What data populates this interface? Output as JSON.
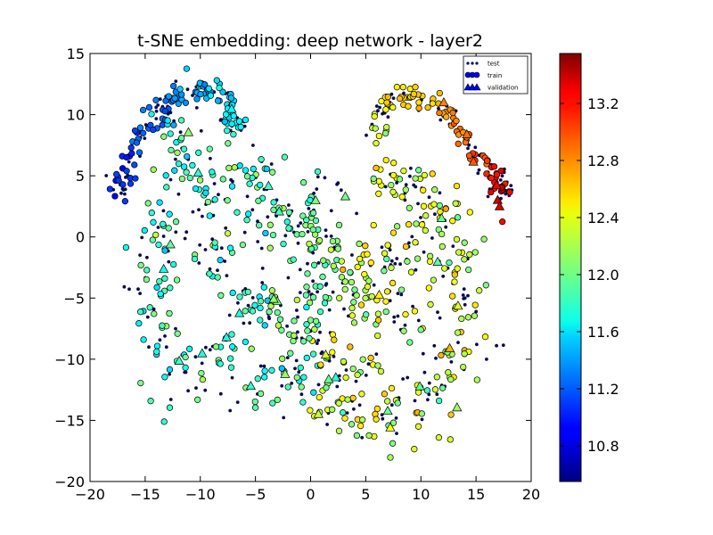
{
  "chart_data": {
    "type": "scatter",
    "title": "t-SNE embedding: deep network - layer2",
    "xlabel": "",
    "ylabel": "",
    "xlim": [
      -20,
      20
    ],
    "ylim": [
      -20,
      15
    ],
    "x_ticks": [
      -20,
      -15,
      -10,
      -5,
      0,
      5,
      10,
      15,
      20
    ],
    "x_tick_labels": [
      "−20",
      "−15",
      "−10",
      "−5",
      "0",
      "5",
      "10",
      "15",
      "20"
    ],
    "y_ticks": [
      -20,
      -15,
      -10,
      -5,
      0,
      5,
      10,
      15
    ],
    "y_tick_labels": [
      "−20",
      "−15",
      "−10",
      "−5",
      "0",
      "5",
      "10",
      "15"
    ],
    "grid": false,
    "legend_position": "top-right",
    "legend": [
      {
        "label": "test",
        "marker": "small-dot"
      },
      {
        "label": "train",
        "marker": "circle"
      },
      {
        "label": "validation",
        "marker": "triangle"
      }
    ],
    "colorbar": {
      "colormap": "jet",
      "min": 10.55,
      "max": 13.55,
      "ticks": [
        10.8,
        11.2,
        11.6,
        12.0,
        12.4,
        12.8,
        13.2
      ],
      "tick_labels": [
        "10.8",
        "11.2",
        "11.6",
        "12.0",
        "12.4",
        "12.8",
        "13.2"
      ]
    },
    "regions": [
      {
        "name": "upper-left arc",
        "value_range": [
          11.0,
          11.7
        ],
        "points": [
          [
            -17.2,
            3.2
          ],
          [
            -17.0,
            4.8
          ],
          [
            -16.2,
            6.8
          ],
          [
            -15.0,
            8.8
          ],
          [
            -13.5,
            10.5
          ],
          [
            -12.0,
            11.8
          ],
          [
            -10.2,
            12.3
          ],
          [
            -8.5,
            12.0
          ],
          [
            -7.5,
            10.8
          ],
          [
            -7.0,
            9.0
          ]
        ]
      },
      {
        "name": "upper-right arc",
        "value_range": [
          12.3,
          13.3
        ],
        "points": [
          [
            6.0,
            8.5
          ],
          [
            6.5,
            10.5
          ],
          [
            7.5,
            11.6
          ],
          [
            9.5,
            11.4
          ],
          [
            11.5,
            10.8
          ],
          [
            13.0,
            9.5
          ],
          [
            14.5,
            7.5
          ],
          [
            15.8,
            6.0
          ],
          [
            17.0,
            4.8
          ],
          [
            17.5,
            3.5
          ]
        ]
      },
      {
        "name": "left body",
        "value_range": [
          11.6,
          12.1
        ],
        "points": [
          [
            -11.5,
            8.0
          ],
          [
            -12.5,
            4.0
          ],
          [
            -13.5,
            0.0
          ],
          [
            -14.5,
            -4.0
          ],
          [
            -13.5,
            -8.0
          ],
          [
            -11.5,
            -11.0
          ],
          [
            -8.0,
            -9.5
          ],
          [
            -4.5,
            -12.5
          ],
          [
            -1.0,
            -11.0
          ],
          [
            -5.5,
            -5.5
          ],
          [
            -8.5,
            -2.0
          ],
          [
            -6.0,
            2.0
          ],
          [
            -5.0,
            6.0
          ],
          [
            -9.0,
            5.0
          ]
        ]
      },
      {
        "name": "center",
        "value_range": [
          11.8,
          12.2
        ],
        "points": [
          [
            -2.5,
            1.5
          ],
          [
            0.5,
            2.5
          ],
          [
            1.5,
            -1.0
          ],
          [
            -1.0,
            -3.5
          ],
          [
            2.5,
            -4.5
          ],
          [
            -0.5,
            -7.5
          ],
          [
            -3.0,
            -6.5
          ],
          [
            0.0,
            0.0
          ]
        ]
      },
      {
        "name": "right body",
        "value_range": [
          12.0,
          12.6
        ],
        "points": [
          [
            7.5,
            5.0
          ],
          [
            9.5,
            3.0
          ],
          [
            11.5,
            2.0
          ],
          [
            12.5,
            -1.0
          ],
          [
            13.5,
            -4.0
          ],
          [
            14.0,
            -8.0
          ],
          [
            12.5,
            -11.0
          ],
          [
            9.5,
            -13.0
          ],
          [
            7.0,
            -15.0
          ],
          [
            3.5,
            -14.5
          ],
          [
            1.5,
            -13.0
          ],
          [
            4.0,
            -10.0
          ],
          [
            8.0,
            -6.5
          ],
          [
            6.0,
            -2.0
          ],
          [
            4.5,
            -4.5
          ],
          [
            8.5,
            -1.0
          ]
        ]
      }
    ]
  }
}
